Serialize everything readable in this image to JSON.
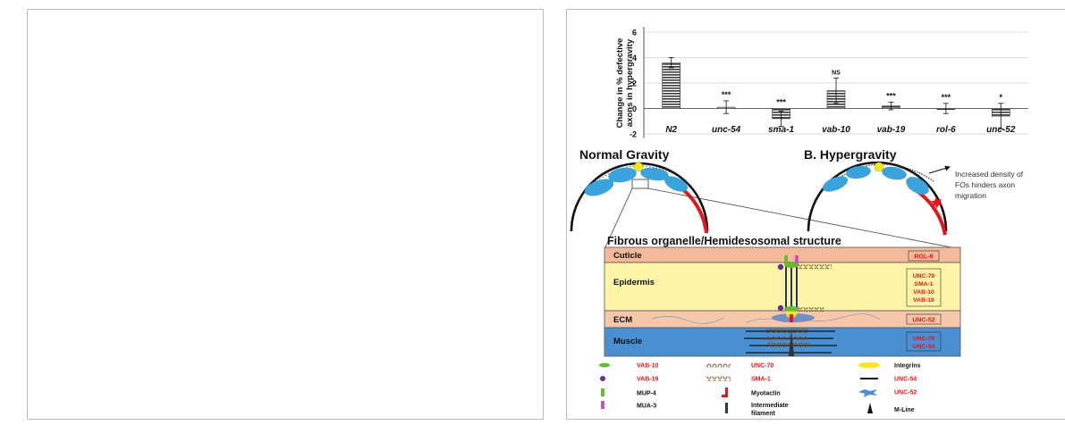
{
  "chart_data": {
    "type": "bar",
    "ylabel_line1": "Change in % defective",
    "ylabel_line2": "axons in hypergravity",
    "ylim": [
      -2,
      6
    ],
    "yticks": [
      "-2",
      "0",
      "2",
      "4",
      "6"
    ],
    "categories": [
      "N2",
      "unc-54",
      "sma-1",
      "vab-10",
      "vab-19",
      "rol-6",
      "unc-52"
    ],
    "values": [
      3.6,
      0.1,
      -0.8,
      1.4,
      0.2,
      0.0,
      -0.6
    ],
    "errors": [
      0.4,
      0.5,
      0.6,
      1.0,
      0.3,
      0.4,
      1.0
    ],
    "significance": [
      "",
      "***",
      "***",
      "NS",
      "***",
      "***",
      "*"
    ],
    "grid": true,
    "bar_pattern": "horizontal-lines"
  },
  "diagram": {
    "normal_title": "Normal Gravity",
    "hyper_title": "B.  Hypergravity",
    "hyper_note": [
      "Increased density of",
      "FOs hinders axon",
      "migration"
    ],
    "structure_title": "Fibrous organelle/Hemidesosomal structure",
    "layers": {
      "cuticle": {
        "label": "Cuticle",
        "proteins": [
          "ROL-6"
        ]
      },
      "epidermis": {
        "label": "Epidermis",
        "proteins": [
          "UNC-70",
          "SMA-1",
          "VAB-10",
          "VAB-19"
        ]
      },
      "ecm": {
        "label": "ECM",
        "proteins": [
          "UNC-52"
        ]
      },
      "muscle": {
        "label": "Muscle",
        "proteins": [
          "UNC-70",
          "UNC-54"
        ]
      }
    }
  },
  "legend": {
    "vab10": "VAB-10",
    "vab19": "VAB-19",
    "mup4": "MUP-4",
    "mua3": "MUA-3",
    "unc70": "UNC-70",
    "sma1": "SMA-1",
    "myotactin": "Myotactin",
    "intermediate_line1": "Intermediate",
    "intermediate_line2": "filament",
    "integrins": "Integrins",
    "unc54": "UNC-54",
    "unc52": "UNC-52",
    "mline": "M-Line"
  },
  "colors": {
    "red": "#e8141b",
    "cuticle": "#f3b998",
    "epidermis": "#fdf4a8",
    "ecm": "#f6c8a9",
    "muscle": "#4a8fd1",
    "blob": "#3ba3dc",
    "yellow": "#f6e81a",
    "green": "#66bb33",
    "purple": "#6b2c91"
  }
}
